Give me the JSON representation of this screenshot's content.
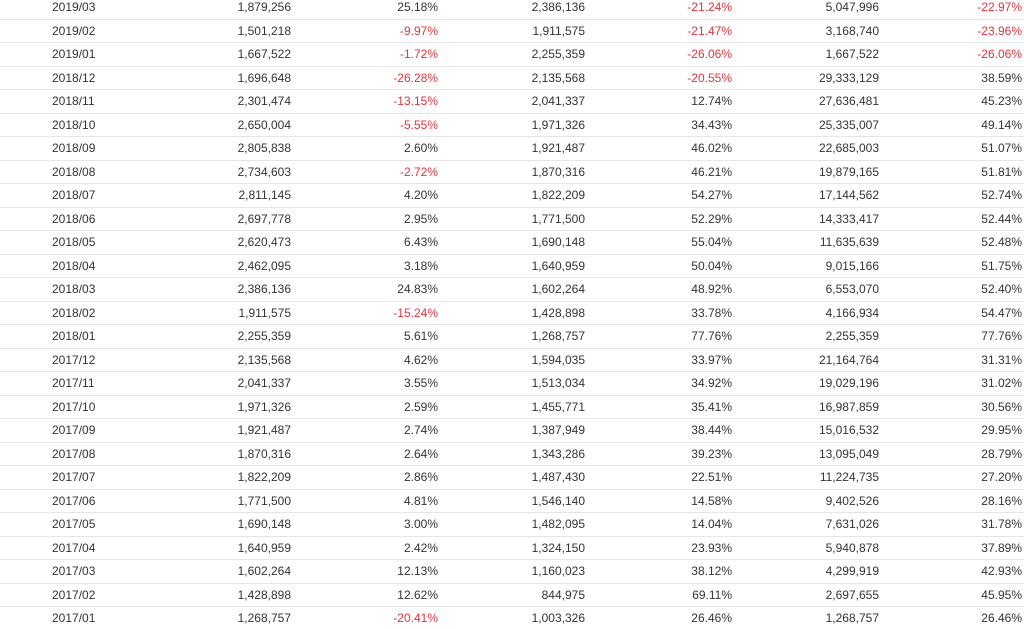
{
  "colors": {
    "text": "#333333",
    "negative": "#e8323c",
    "row_border": "#e6e6e6"
  },
  "rows": [
    [
      "2019/03",
      "1,879,256",
      "25.18%",
      "2,386,136",
      "-21.24%",
      "5,047,996",
      "-22.97%"
    ],
    [
      "2019/02",
      "1,501,218",
      "-9.97%",
      "1,911,575",
      "-21.47%",
      "3,168,740",
      "-23.96%"
    ],
    [
      "2019/01",
      "1,667,522",
      "-1.72%",
      "2,255,359",
      "-26.06%",
      "1,667,522",
      "-26.06%"
    ],
    [
      "2018/12",
      "1,696,648",
      "-26.28%",
      "2,135,568",
      "-20.55%",
      "29,333,129",
      "38.59%"
    ],
    [
      "2018/11",
      "2,301,474",
      "-13.15%",
      "2,041,337",
      "12.74%",
      "27,636,481",
      "45.23%"
    ],
    [
      "2018/10",
      "2,650,004",
      "-5.55%",
      "1,971,326",
      "34.43%",
      "25,335,007",
      "49.14%"
    ],
    [
      "2018/09",
      "2,805,838",
      "2.60%",
      "1,921,487",
      "46.02%",
      "22,685,003",
      "51.07%"
    ],
    [
      "2018/08",
      "2,734,603",
      "-2.72%",
      "1,870,316",
      "46.21%",
      "19,879,165",
      "51.81%"
    ],
    [
      "2018/07",
      "2,811,145",
      "4.20%",
      "1,822,209",
      "54.27%",
      "17,144,562",
      "52.74%"
    ],
    [
      "2018/06",
      "2,697,778",
      "2.95%",
      "1,771,500",
      "52.29%",
      "14,333,417",
      "52.44%"
    ],
    [
      "2018/05",
      "2,620,473",
      "6.43%",
      "1,690,148",
      "55.04%",
      "11,635,639",
      "52.48%"
    ],
    [
      "2018/04",
      "2,462,095",
      "3.18%",
      "1,640,959",
      "50.04%",
      "9,015,166",
      "51.75%"
    ],
    [
      "2018/03",
      "2,386,136",
      "24.83%",
      "1,602,264",
      "48.92%",
      "6,553,070",
      "52.40%"
    ],
    [
      "2018/02",
      "1,911,575",
      "-15.24%",
      "1,428,898",
      "33.78%",
      "4,166,934",
      "54.47%"
    ],
    [
      "2018/01",
      "2,255,359",
      "5.61%",
      "1,268,757",
      "77.76%",
      "2,255,359",
      "77.76%"
    ],
    [
      "2017/12",
      "2,135,568",
      "4.62%",
      "1,594,035",
      "33.97%",
      "21,164,764",
      "31.31%"
    ],
    [
      "2017/11",
      "2,041,337",
      "3.55%",
      "1,513,034",
      "34.92%",
      "19,029,196",
      "31.02%"
    ],
    [
      "2017/10",
      "1,971,326",
      "2.59%",
      "1,455,771",
      "35.41%",
      "16,987,859",
      "30.56%"
    ],
    [
      "2017/09",
      "1,921,487",
      "2.74%",
      "1,387,949",
      "38.44%",
      "15,016,532",
      "29.95%"
    ],
    [
      "2017/08",
      "1,870,316",
      "2.64%",
      "1,343,286",
      "39.23%",
      "13,095,049",
      "28.79%"
    ],
    [
      "2017/07",
      "1,822,209",
      "2.86%",
      "1,487,430",
      "22.51%",
      "11,224,735",
      "27.20%"
    ],
    [
      "2017/06",
      "1,771,500",
      "4.81%",
      "1,546,140",
      "14.58%",
      "9,402,526",
      "28.16%"
    ],
    [
      "2017/05",
      "1,690,148",
      "3.00%",
      "1,482,095",
      "14.04%",
      "7,631,026",
      "31.78%"
    ],
    [
      "2017/04",
      "1,640,959",
      "2.42%",
      "1,324,150",
      "23.93%",
      "5,940,878",
      "37.89%"
    ],
    [
      "2017/03",
      "1,602,264",
      "12.13%",
      "1,160,023",
      "38.12%",
      "4,299,919",
      "42.93%"
    ],
    [
      "2017/02",
      "1,428,898",
      "12.62%",
      "844,975",
      "69.11%",
      "2,697,655",
      "45.95%"
    ],
    [
      "2017/01",
      "1,268,757",
      "-20.41%",
      "1,003,326",
      "26.46%",
      "1,268,757",
      "26.46%"
    ]
  ]
}
